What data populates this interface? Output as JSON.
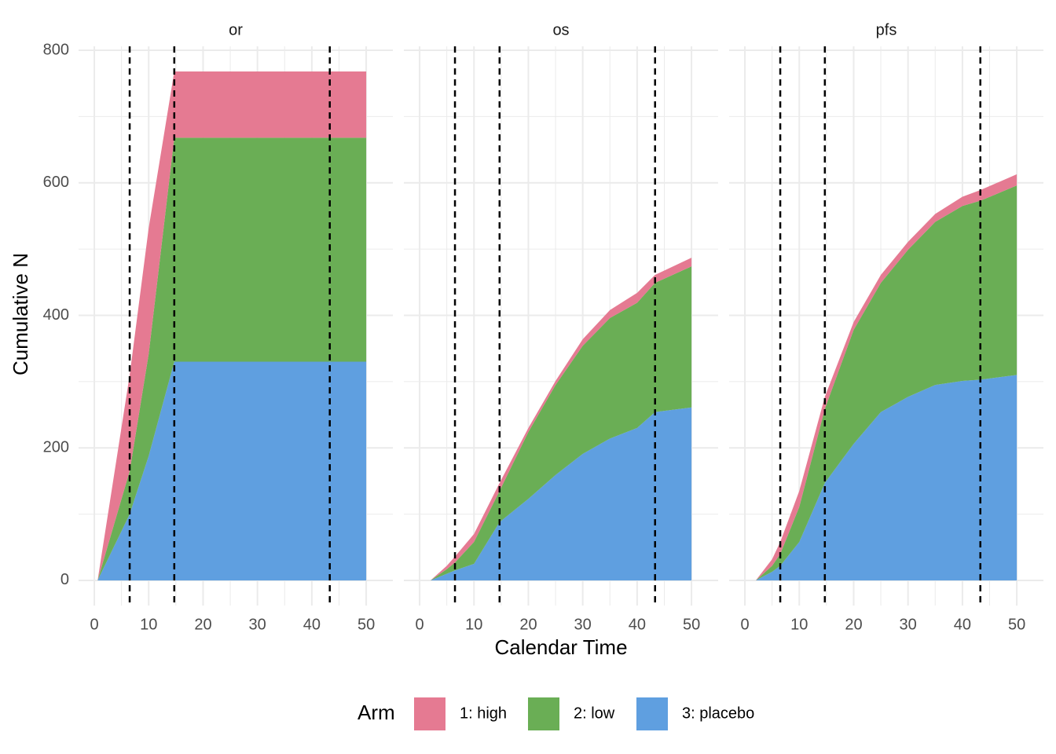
{
  "chart_data": {
    "type": "area",
    "x_label": "Calendar Time",
    "y_label": "Cumulative N",
    "legend_title": "Arm",
    "series": [
      {
        "name": "1: high",
        "color": "#e57a92"
      },
      {
        "name": "2: low",
        "color": "#6aae55"
      },
      {
        "name": "3: placebo",
        "color": "#5f9fe0"
      }
    ],
    "xlim": [
      -2.9,
      54.9
    ],
    "ylim": [
      -38,
      806
    ],
    "xticks": [
      0,
      10,
      20,
      30,
      40,
      50
    ],
    "yticks": [
      0,
      200,
      400,
      600,
      800
    ],
    "grid": true,
    "vline_color": "#000000",
    "facets": [
      {
        "title": "or",
        "vlines": [
          6.5,
          14.7,
          43.3
        ],
        "x": [
          0.6,
          6.5,
          10,
          14.7,
          50
        ],
        "series": [
          {
            "values": [
              0,
              145,
              190,
              100,
              100
            ]
          },
          {
            "values": [
              0,
              65,
              154,
              338,
              338
            ]
          },
          {
            "values": [
              0,
              100,
              188,
              330,
              330
            ]
          }
        ]
      },
      {
        "title": "os",
        "vlines": [
          6.5,
          14.7,
          43.3
        ],
        "x": [
          2,
          5,
          6.5,
          10,
          14.7,
          20,
          25,
          30,
          35,
          40,
          43.3,
          50
        ],
        "series": [
          {
            "values": [
              0,
              5,
              9,
              12,
              12,
              6,
              6,
              10,
              12,
              15,
              12,
              13
            ]
          },
          {
            "values": [
              0,
              7,
              12,
              33,
              47,
              101,
              136,
              163,
              182,
              189,
              195,
              213
            ]
          },
          {
            "values": [
              0,
              10,
              15,
              25,
              88,
              123,
              159,
              191,
              214,
              230,
              254,
              261
            ]
          }
        ]
      },
      {
        "title": "pfs",
        "vlines": [
          6.5,
          14.7,
          43.3
        ],
        "x": [
          2,
          5,
          6.5,
          10,
          14.7,
          20,
          25,
          30,
          35,
          40,
          43.3,
          50
        ],
        "series": [
          {
            "values": [
              0,
              10,
              18,
              24,
              18,
              12,
              12,
              12,
              12,
              14,
              16,
              17
            ]
          },
          {
            "values": [
              0,
              9,
              18,
              53,
              112,
              172,
              195,
              222,
              246,
              264,
              270,
              286
            ]
          },
          {
            "values": [
              0,
              13,
              22,
              58,
              147,
              206,
              254,
              277,
              295,
              301,
              303,
              310
            ]
          }
        ]
      }
    ]
  }
}
